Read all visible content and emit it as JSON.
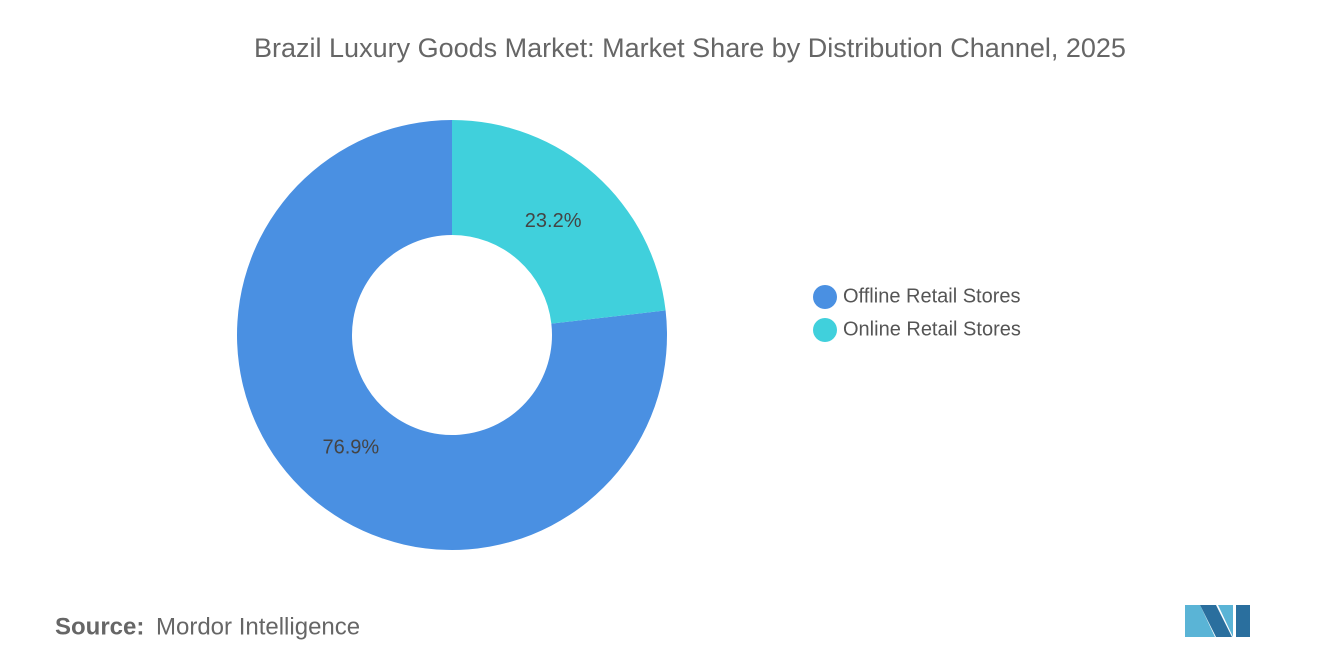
{
  "chart_data": {
    "type": "donut",
    "title": "Brazil Luxury Goods Market: Market Share by Distribution Channel, 2025",
    "series": [
      {
        "name": "Offline Retail Stores",
        "color": "#4a90e2",
        "values": [
          76.9
        ],
        "value_labels": [
          "76.9%"
        ]
      },
      {
        "name": "Online Retail Stores",
        "color": "#40d0dc",
        "values": [
          23.2
        ],
        "value_labels": [
          "23.2%"
        ]
      }
    ],
    "legend": "right",
    "source_label": "Source:",
    "source": "Mordor Intelligence"
  }
}
